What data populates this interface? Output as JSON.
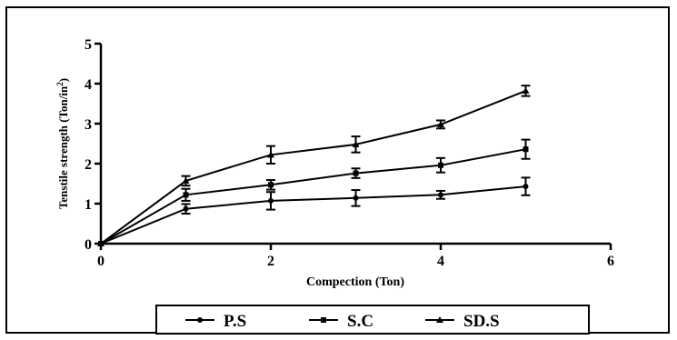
{
  "chart_data": {
    "type": "line",
    "title": "",
    "xlabel": "Compection (Ton)",
    "ylabel": "Tenstile strength (Ton/in",
    "ylabel_superscript": "2",
    "ylabel_close": ")",
    "xlim": [
      0,
      6
    ],
    "ylim": [
      0,
      5
    ],
    "xticks": [
      0,
      2,
      4,
      6
    ],
    "yticks": [
      0,
      1,
      2,
      3,
      4,
      5
    ],
    "grid": false,
    "legend_position": "bottom",
    "x": [
      0,
      1,
      2,
      3,
      4,
      5
    ],
    "series": [
      {
        "name": "P.S",
        "marker": "circle",
        "values": [
          0,
          0.87,
          1.07,
          1.14,
          1.22,
          1.43
        ],
        "errors": [
          0,
          0.12,
          0.22,
          0.2,
          0.1,
          0.22
        ]
      },
      {
        "name": "S.C",
        "marker": "square",
        "values": [
          0,
          1.22,
          1.47,
          1.76,
          1.96,
          2.36
        ],
        "errors": [
          0,
          0.15,
          0.12,
          0.12,
          0.18,
          0.24
        ]
      },
      {
        "name": "SD.S",
        "marker": "triangle",
        "values": [
          0,
          1.57,
          2.22,
          2.48,
          2.98,
          3.82
        ],
        "errors": [
          0,
          0.12,
          0.22,
          0.2,
          0.1,
          0.13
        ]
      }
    ]
  }
}
